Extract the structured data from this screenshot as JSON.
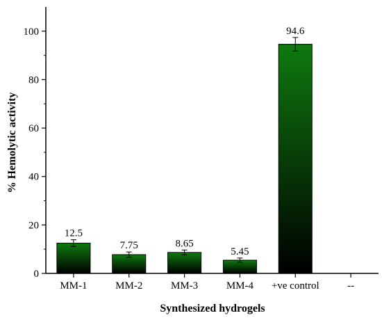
{
  "chart_data": {
    "type": "bar",
    "title": "",
    "xlabel": "Synthesized hydrogels",
    "ylabel": "% Hemolytic activity",
    "categories": [
      "MM-1",
      "MM-2",
      "MM-3",
      "MM-4",
      "+ve control",
      "--"
    ],
    "values": [
      12.5,
      7.75,
      8.65,
      5.45,
      94.6,
      null
    ],
    "data_labels": [
      "12.5",
      "7.75",
      "8.65",
      "5.45",
      "94.6",
      ""
    ],
    "error": [
      1.4,
      1.1,
      1.0,
      0.9,
      2.8,
      null
    ],
    "ylim": [
      0,
      110
    ],
    "yticks": [
      0,
      20,
      40,
      60,
      80,
      100
    ],
    "grid": false,
    "bar_gradient": [
      "#0f7a0f",
      "#000000"
    ]
  }
}
